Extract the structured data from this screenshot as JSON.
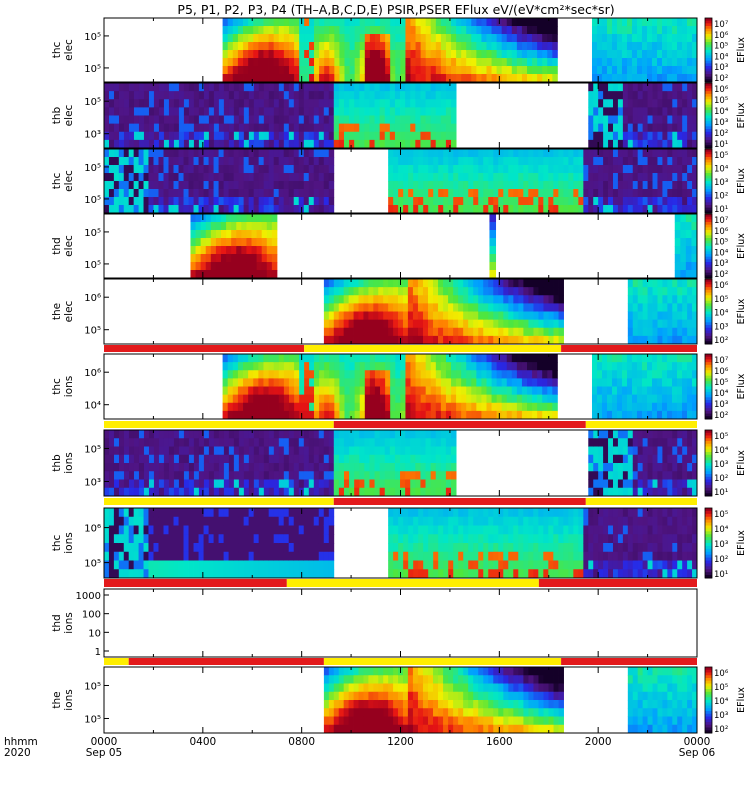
{
  "title": "P5, P1, P2, P3, P4 (TH–A,B,C,D,E) PSIR,PSER EFlux eV/(eV*cm²*sec*sr)",
  "x_axis": {
    "row_label_1": "hhmm",
    "row_label_2": "2020",
    "ticks": [
      "0000",
      "0400",
      "0800",
      "1200",
      "1600",
      "2000",
      "0000"
    ],
    "date_labels": [
      "Sep 05",
      "Sep 06"
    ]
  },
  "colors": {
    "flag_red": "#e31a1c",
    "flag_yellow": "#ffee00",
    "no_data": "#ffffff"
  },
  "chart_data": [
    {
      "type": "heatmap",
      "panel": "thc-elec",
      "ylabel": [
        "thc",
        "elec"
      ],
      "y_ticks": [
        "10⁵",
        "10⁵"
      ],
      "colorbar": {
        "label": "EFlux",
        "ticks": [
          "10⁷",
          "10⁶",
          "10⁵",
          "10⁴",
          "10³",
          "10²"
        ]
      },
      "x_range_hours": [
        0,
        24
      ],
      "data_intervals_hours": [
        [
          4.8,
          18.35
        ],
        [
          19.75,
          24
        ]
      ],
      "segments": [
        {
          "t": [
            4.8,
            7.9
          ],
          "profile": "hot"
        },
        {
          "t": [
            7.9,
            8.5
          ],
          "profile": "spiky"
        },
        {
          "t": [
            8.5,
            12.2
          ],
          "profile": "mixed"
        },
        {
          "t": [
            12.2,
            18.35
          ],
          "profile": "decay"
        },
        {
          "t": [
            19.75,
            24
          ],
          "profile": "cool"
        }
      ]
    },
    {
      "type": "heatmap",
      "panel": "thb-elec",
      "ylabel": [
        "thb",
        "elec"
      ],
      "y_ticks": [
        "10⁵",
        "10³"
      ],
      "colorbar": {
        "label": "EFlux",
        "ticks": [
          "10⁶",
          "10⁵",
          "10⁴",
          "10³",
          "10²",
          "10¹"
        ]
      },
      "x_range_hours": [
        0,
        24
      ],
      "data_intervals_hours": [
        [
          0,
          14.25
        ],
        [
          19.6,
          24
        ]
      ],
      "segments": [
        {
          "t": [
            0,
            9.3
          ],
          "profile": "noisy_dark"
        },
        {
          "t": [
            9.3,
            14.25
          ],
          "profile": "sheath"
        },
        {
          "t": [
            19.6,
            21.0
          ],
          "profile": "noisy_cyan"
        },
        {
          "t": [
            21.0,
            24
          ],
          "profile": "noisy_dark"
        }
      ]
    },
    {
      "type": "heatmap",
      "panel": "thc-elec-2",
      "ylabel": [
        "thc",
        "elec"
      ],
      "y_ticks": [
        "10⁵",
        "10⁵"
      ],
      "colorbar": {
        "label": "EFlux",
        "ticks": [
          "10⁵",
          "10⁴",
          "10³",
          "10²",
          "10¹"
        ]
      },
      "x_range_hours": [
        0,
        24
      ],
      "data_intervals_hours": [
        [
          0,
          9.3
        ],
        [
          11.5,
          19.4
        ],
        [
          19.4,
          24
        ]
      ],
      "segments": [
        {
          "t": [
            0,
            1.8
          ],
          "profile": "noisy_cyan"
        },
        {
          "t": [
            1.8,
            9.3
          ],
          "profile": "noisy_dark"
        },
        {
          "t": [
            11.5,
            19.4
          ],
          "profile": "sheath"
        },
        {
          "t": [
            19.4,
            24
          ],
          "profile": "noisy_dark"
        }
      ]
    },
    {
      "type": "heatmap",
      "panel": "thd-elec",
      "ylabel": [
        "thd",
        "elec"
      ],
      "y_ticks": [
        "10⁵",
        "10⁵"
      ],
      "colorbar": {
        "label": "EFlux",
        "ticks": [
          "10⁷",
          "10⁶",
          "10⁵",
          "10⁴",
          "10³",
          "10²"
        ]
      },
      "x_range_hours": [
        0,
        24
      ],
      "data_intervals_hours": [
        [
          3.5,
          7.0
        ],
        [
          15.6,
          15.85
        ],
        [
          23.1,
          24
        ]
      ],
      "segments": [
        {
          "t": [
            3.5,
            7.0
          ],
          "profile": "hot"
        },
        {
          "t": [
            15.6,
            15.85
          ],
          "profile": "column"
        },
        {
          "t": [
            23.1,
            24
          ],
          "profile": "cool"
        }
      ]
    },
    {
      "type": "heatmap",
      "panel": "the-elec",
      "ylabel": [
        "the",
        "elec"
      ],
      "y_ticks": [
        "10⁶",
        "10⁵"
      ],
      "colorbar": {
        "label": "EFlux",
        "ticks": [
          "10⁶",
          "10⁵",
          "10⁴",
          "10³",
          "10²"
        ]
      },
      "x_range_hours": [
        0,
        24
      ],
      "data_intervals_hours": [
        [
          8.9,
          18.6
        ],
        [
          21.2,
          24
        ]
      ],
      "segments": [
        {
          "t": [
            8.9,
            12.3
          ],
          "profile": "hot"
        },
        {
          "t": [
            12.3,
            18.6
          ],
          "profile": "decay"
        },
        {
          "t": [
            21.2,
            24
          ],
          "profile": "cool"
        }
      ]
    },
    {
      "type": "heatmap",
      "panel": "thc-ions",
      "ylabel": [
        "thc",
        "ions"
      ],
      "y_ticks": [
        "10⁶",
        "10⁴"
      ],
      "colorbar": {
        "label": "EFlux",
        "ticks": [
          "10⁷",
          "10⁶",
          "10⁵",
          "10⁴",
          "10³",
          "10²"
        ]
      },
      "x_range_hours": [
        0,
        24
      ],
      "data_intervals_hours": [
        [
          4.8,
          18.35
        ],
        [
          19.75,
          24
        ]
      ],
      "segments": [
        {
          "t": [
            4.8,
            7.9
          ],
          "profile": "hot"
        },
        {
          "t": [
            7.9,
            8.5
          ],
          "profile": "spiky"
        },
        {
          "t": [
            8.5,
            12.2
          ],
          "profile": "mixed"
        },
        {
          "t": [
            12.2,
            18.35
          ],
          "profile": "decay"
        },
        {
          "t": [
            19.75,
            24
          ],
          "profile": "cool"
        }
      ]
    },
    {
      "type": "heatmap",
      "panel": "thb-ions",
      "ylabel": [
        "thb",
        "ions"
      ],
      "y_ticks": [
        "10⁵",
        "10³"
      ],
      "colorbar": {
        "label": "EFlux",
        "ticks": [
          "10⁵",
          "10⁴",
          "10³",
          "10²",
          "10¹"
        ]
      },
      "x_range_hours": [
        0,
        24
      ],
      "data_intervals_hours": [
        [
          0,
          14.25
        ],
        [
          19.6,
          24
        ]
      ],
      "segments": [
        {
          "t": [
            0,
            9.3
          ],
          "profile": "noisy_dark"
        },
        {
          "t": [
            9.3,
            14.25
          ],
          "profile": "sheath"
        },
        {
          "t": [
            19.6,
            21.4
          ],
          "profile": "noisy_cyan"
        },
        {
          "t": [
            21.4,
            24
          ],
          "profile": "noisy_dark"
        }
      ]
    },
    {
      "type": "heatmap",
      "panel": "thc-ions-2",
      "ylabel": [
        "thc",
        "ions"
      ],
      "y_ticks": [
        "10⁶",
        "10⁵"
      ],
      "colorbar": {
        "label": "EFlux",
        "ticks": [
          "10⁵",
          "10⁴",
          "10³",
          "10²",
          "10¹"
        ]
      },
      "x_range_hours": [
        0,
        24
      ],
      "data_intervals_hours": [
        [
          0,
          9.3
        ],
        [
          11.5,
          19.4
        ],
        [
          19.4,
          24
        ]
      ],
      "segments": [
        {
          "t": [
            0,
            1.8
          ],
          "profile": "noisy_cyan"
        },
        {
          "t": [
            1.8,
            9.3
          ],
          "profile": "band_low"
        },
        {
          "t": [
            11.5,
            19.4
          ],
          "profile": "sheath"
        },
        {
          "t": [
            19.4,
            24
          ],
          "profile": "noisy_dark"
        }
      ]
    },
    {
      "type": "line",
      "panel": "thd-ions",
      "ylabel": [
        "thd",
        "ions"
      ],
      "y_ticks": [
        "1000",
        "100",
        "10",
        "1"
      ],
      "y_scale": "log",
      "ylim": [
        0.5,
        2000
      ],
      "x_range_hours": [
        0,
        24
      ],
      "series": []
    },
    {
      "type": "heatmap",
      "panel": "the-ions",
      "ylabel": [
        "the",
        "ions"
      ],
      "y_ticks": [
        "10⁵",
        "10⁵"
      ],
      "colorbar": {
        "label": "EFlux",
        "ticks": [
          "10⁶",
          "10⁵",
          "10⁴",
          "10³",
          "10²"
        ]
      },
      "x_range_hours": [
        0,
        24
      ],
      "data_intervals_hours": [
        [
          8.9,
          18.6
        ],
        [
          21.2,
          24
        ]
      ],
      "segments": [
        {
          "t": [
            8.9,
            12.3
          ],
          "profile": "hot"
        },
        {
          "t": [
            12.3,
            18.6
          ],
          "profile": "decay"
        },
        {
          "t": [
            21.2,
            24
          ],
          "profile": "cool"
        }
      ]
    }
  ],
  "flag_bars": [
    {
      "after_panel": "the-elec",
      "intervals_hours": [
        [
          0,
          8.1,
          "red"
        ],
        [
          8.1,
          18.5,
          "yellow"
        ],
        [
          18.5,
          24,
          "red"
        ]
      ]
    },
    {
      "after_panel": "thc-ions",
      "intervals_hours": [
        [
          0,
          9.3,
          "yellow"
        ],
        [
          9.3,
          19.5,
          "red"
        ],
        [
          19.5,
          24,
          "yellow"
        ]
      ]
    },
    {
      "after_panel": "thb-ions",
      "intervals_hours": [
        [
          0,
          9.3,
          "yellow"
        ],
        [
          9.3,
          19.5,
          "red"
        ],
        [
          19.5,
          24,
          "yellow"
        ]
      ]
    },
    {
      "after_panel": "thc-ions-2",
      "intervals_hours": [
        [
          0,
          7.4,
          "red"
        ],
        [
          7.4,
          17.6,
          "yellow"
        ],
        [
          17.6,
          24,
          "red"
        ]
      ]
    },
    {
      "after_panel": "thd-ions",
      "intervals_hours": [
        [
          0,
          1.0,
          "yellow"
        ],
        [
          1.0,
          8.9,
          "red"
        ],
        [
          8.9,
          18.5,
          "yellow"
        ],
        [
          18.5,
          24,
          "red"
        ]
      ]
    }
  ]
}
